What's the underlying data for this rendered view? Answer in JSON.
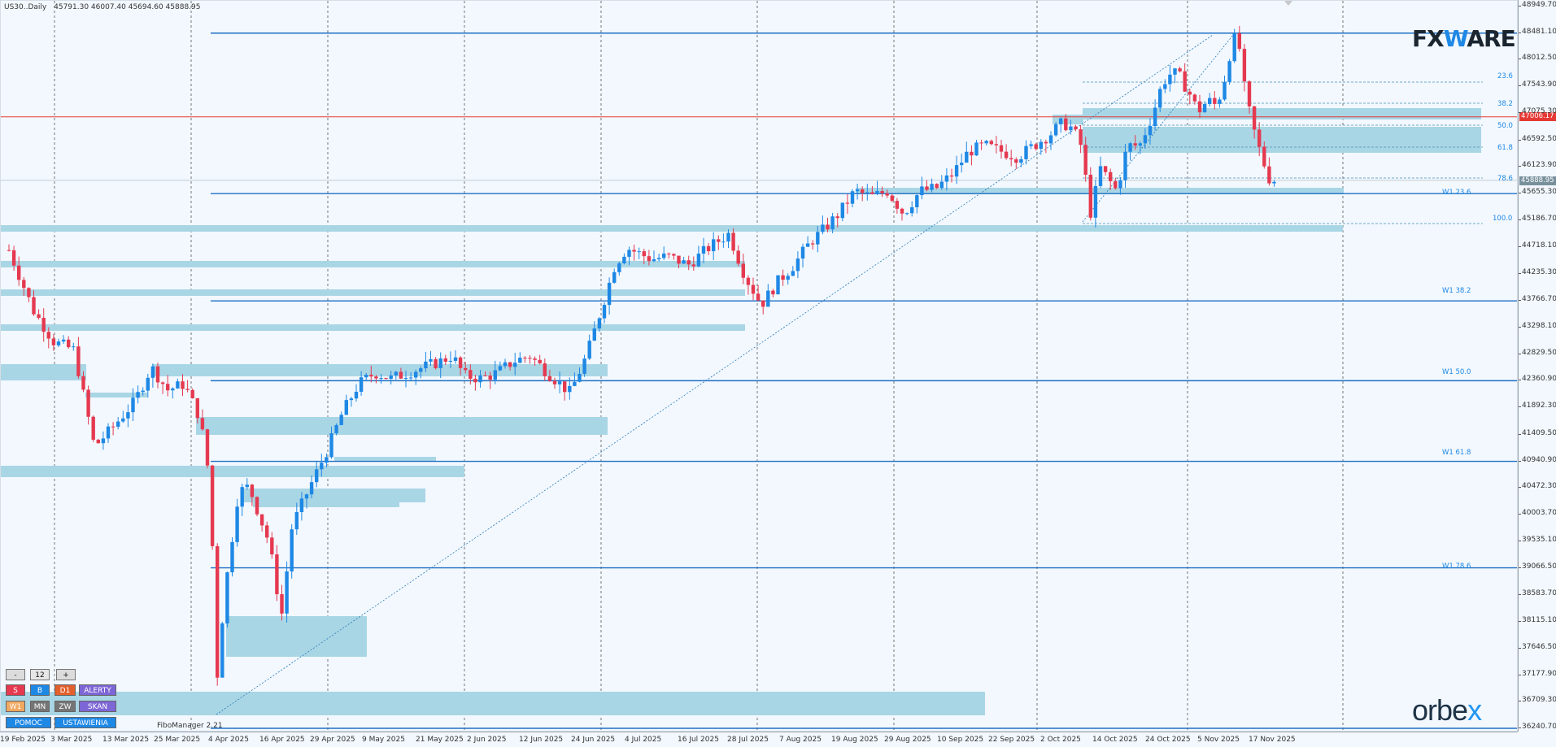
{
  "symbol_info": {
    "symbol": "US30..Daily",
    "ohlc": "45791.30 46007.40 45694.60 45888.95"
  },
  "price_axis": {
    "labels": [
      "48949.70",
      "48481.10",
      "48012.50",
      "47543.90",
      "47075.30",
      "46592.50",
      "46123.90",
      "45655.30",
      "45186.70",
      "44718.10",
      "44235.30",
      "43766.70",
      "43298.10",
      "42829.50",
      "42360.90",
      "41892.30",
      "41409.50",
      "40940.90",
      "40472.30",
      "40003.70",
      "39535.10",
      "39066.50",
      "38583.70",
      "38115.10",
      "37646.50",
      "37177.90",
      "36709.30",
      "36240.70"
    ],
    "current_price_tag": "45888.95",
    "red_line_tag": "47006.17"
  },
  "time_axis": {
    "labels": [
      "19 Feb 2025",
      "3 Mar 2025",
      "13 Mar 2025",
      "25 Mar 2025",
      "4 Apr 2025",
      "16 Apr 2025",
      "29 Apr 2025",
      "9 May 2025",
      "21 May 2025",
      "2 Jun 2025",
      "12 Jun 2025",
      "24 Jun 2025",
      "4 Jul 2025",
      "16 Jul 2025",
      "28 Jul 2025",
      "7 Aug 2025",
      "19 Aug 2025",
      "29 Aug 2025",
      "10 Sep 2025",
      "22 Sep 2025",
      "2 Oct 2025",
      "14 Oct 2025",
      "24 Oct 2025",
      "5 Nov 2025",
      "17 Nov 2025"
    ]
  },
  "fibo_levels": {
    "local": [
      "23.6",
      "38.2",
      "50.0",
      "61.8",
      "78.6",
      "100.0"
    ],
    "weekly": [
      "W1 23.6",
      "W1 38.2",
      "W1 50.0",
      "W1 61.8",
      "W1 78.6"
    ]
  },
  "branding": {
    "fxware_prefix": "FX",
    "fxware_w": "W",
    "fxware_suffix": "ARE",
    "orbex_prefix": "orbe",
    "orbex_x": "x",
    "fibo_manager": "FiboManager 2.21"
  },
  "panel": {
    "minus": "-",
    "period_value": "12",
    "plus": "+",
    "s": "S",
    "b": "B",
    "d1": "D1",
    "alerty": "ALERTY",
    "w1": "W1",
    "mn": "MN",
    "zw": "ZW",
    "skan": "SKAN",
    "pomoc": "POMOC",
    "ustawienia": "USTAWIENIA"
  },
  "colors": {
    "bull": "#1e88e5",
    "bear": "#e53950",
    "zone": "#a9d6e5",
    "level_line": "#1e6fc4",
    "red_line": "#e53935",
    "price_tag": "#78909c",
    "red_tag": "#e53935"
  },
  "chart_data": {
    "type": "candlestick",
    "symbol": "US30..Daily",
    "last": {
      "open": 45791.3,
      "high": 46007.4,
      "low": 45694.6,
      "close": 45888.95
    },
    "price_range": [
      36240.7,
      48949.7
    ],
    "horizontal_levels": [
      48481.1,
      45655.3,
      43766.7,
      42360.9,
      40940.9,
      39066.5,
      36240.7
    ],
    "red_level": 47006.17,
    "current_price": 45888.95
  }
}
